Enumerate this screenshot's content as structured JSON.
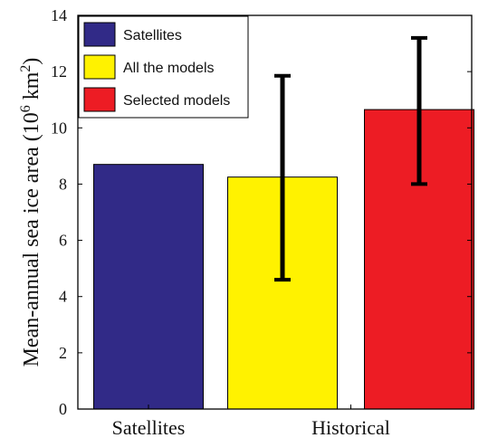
{
  "chart_data": {
    "type": "bar",
    "categories": [
      "Satellites",
      "Historical"
    ],
    "series": [
      {
        "name": "Satellites",
        "color": "#312a87",
        "values": [
          8.7,
          null
        ],
        "error": [
          null,
          null
        ]
      },
      {
        "name": "All the models",
        "color": "#fff200",
        "values": [
          null,
          8.25
        ],
        "error": [
          null,
          [
            4.6,
            11.85
          ]
        ]
      },
      {
        "name": "Selected models",
        "color": "#ed1c24",
        "values": [
          null,
          10.65
        ],
        "error": [
          null,
          [
            8.0,
            13.2
          ]
        ]
      }
    ],
    "ylabel": {
      "main": "Mean-annual sea ice area (10",
      "sup1": "6",
      "unit": " km",
      "sup2": "2",
      "close": ")"
    },
    "xlabel": "",
    "ylim": [
      0,
      14
    ],
    "yticks": [
      0,
      2,
      4,
      6,
      8,
      10,
      12,
      14
    ],
    "legend_position": "top-left",
    "grid": false
  }
}
